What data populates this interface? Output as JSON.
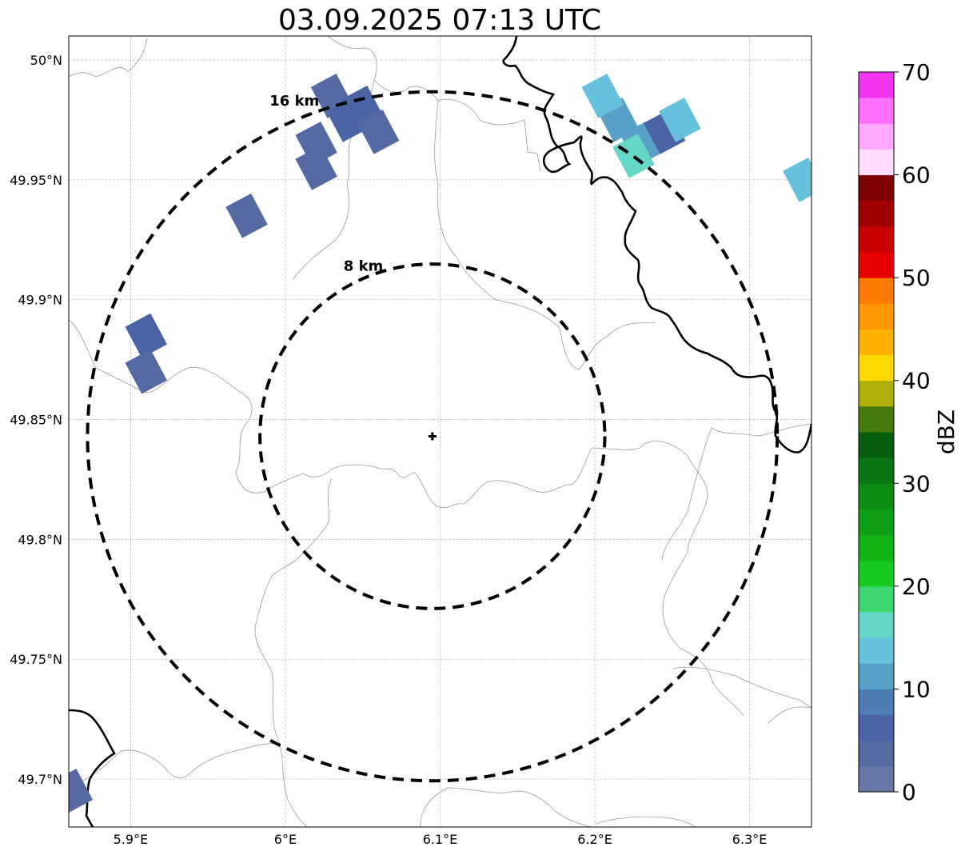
{
  "title": "03.09.2025 07:13 UTC",
  "map": {
    "lon_range": [
      5.86,
      6.34
    ],
    "lat_range": [
      49.68,
      50.01
    ],
    "lon_ticks": [
      {
        "value": 5.9,
        "label": "5.9°E"
      },
      {
        "value": 6.0,
        "label": "6°E"
      },
      {
        "value": 6.1,
        "label": "6.1°E"
      },
      {
        "value": 6.2,
        "label": "6.2°E"
      },
      {
        "value": 6.3,
        "label": "6.3°E"
      }
    ],
    "lat_ticks": [
      {
        "value": 50.0,
        "label": "50°N"
      },
      {
        "value": 49.95,
        "label": "49.95°N"
      },
      {
        "value": 49.9,
        "label": "49.9°N"
      },
      {
        "value": 49.85,
        "label": "49.85°N"
      },
      {
        "value": 49.8,
        "label": "49.8°N"
      },
      {
        "value": 49.75,
        "label": "49.75°N"
      },
      {
        "value": 49.7,
        "label": "49.7°N"
      }
    ],
    "grid": true,
    "radar_site": {
      "lon": 6.095,
      "lat": 49.843,
      "marker": "plus"
    },
    "range_rings": [
      {
        "radius_km": 8,
        "label": "8 km"
      },
      {
        "radius_km": 16,
        "label": "16 km"
      }
    ],
    "echo_cells": [
      {
        "lon": 6.03,
        "lat": 49.985,
        "dbz": 3
      },
      {
        "lon": 6.04,
        "lat": 49.975,
        "dbz": 5
      },
      {
        "lon": 6.02,
        "lat": 49.965,
        "dbz": 4
      },
      {
        "lon": 6.05,
        "lat": 49.98,
        "dbz": 6
      },
      {
        "lon": 6.02,
        "lat": 49.955,
        "dbz": 3
      },
      {
        "lon": 6.06,
        "lat": 49.97,
        "dbz": 4
      },
      {
        "lon": 5.975,
        "lat": 49.935,
        "dbz": 3
      },
      {
        "lon": 5.91,
        "lat": 49.885,
        "dbz": 6
      },
      {
        "lon": 5.91,
        "lat": 49.87,
        "dbz": 3
      },
      {
        "lon": 6.215,
        "lat": 49.975,
        "dbz": 10
      },
      {
        "lon": 6.23,
        "lat": 49.965,
        "dbz": 12
      },
      {
        "lon": 6.245,
        "lat": 49.97,
        "dbz": 6
      },
      {
        "lon": 6.225,
        "lat": 49.96,
        "dbz": 16
      },
      {
        "lon": 6.205,
        "lat": 49.985,
        "dbz": 14
      },
      {
        "lon": 6.255,
        "lat": 49.975,
        "dbz": 13
      },
      {
        "lon": 6.335,
        "lat": 49.95,
        "dbz": 13
      },
      {
        "lon": 5.862,
        "lat": 49.695,
        "dbz": 4
      }
    ]
  },
  "colorbar": {
    "label": "dBZ",
    "min": 0,
    "max": 70,
    "step": 2.5,
    "ticks": [
      "0",
      "10",
      "20",
      "30",
      "40",
      "50",
      "60",
      "70"
    ],
    "colors": [
      "#6677a8",
      "#556aa3",
      "#4a64a6",
      "#4d7db3",
      "#58a0c8",
      "#66c2dc",
      "#66d6c6",
      "#3ed671",
      "#14cc20",
      "#12b416",
      "#109e16",
      "#0c8c12",
      "#0a7612",
      "#065f0c",
      "#467a0c",
      "#aeb00a",
      "#ffd800",
      "#ffb300",
      "#ff9800",
      "#ff7a00",
      "#e80000",
      "#c80000",
      "#a20000",
      "#7e0000",
      "#ffdcff",
      "#ffaaff",
      "#ff70ff",
      "#f236f0"
    ]
  }
}
